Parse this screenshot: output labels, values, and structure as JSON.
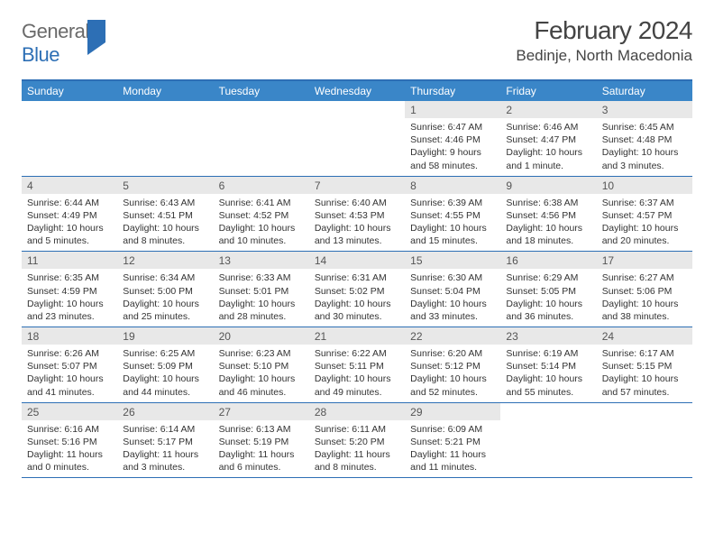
{
  "header": {
    "logo_general": "General",
    "logo_blue": "Blue",
    "title": "February 2024",
    "location": "Bedinje, North Macedonia"
  },
  "colors": {
    "header_bar": "#3a86c8",
    "rule": "#2d6fb5",
    "daynum_bg": "#e8e8e8",
    "text": "#333333",
    "title": "#444444"
  },
  "daysOfWeek": [
    "Sunday",
    "Monday",
    "Tuesday",
    "Wednesday",
    "Thursday",
    "Friday",
    "Saturday"
  ],
  "weeks": [
    [
      {
        "empty": true
      },
      {
        "empty": true
      },
      {
        "empty": true
      },
      {
        "empty": true
      },
      {
        "day": "1",
        "sunrise": "Sunrise: 6:47 AM",
        "sunset": "Sunset: 4:46 PM",
        "daylight": "Daylight: 9 hours and 58 minutes."
      },
      {
        "day": "2",
        "sunrise": "Sunrise: 6:46 AM",
        "sunset": "Sunset: 4:47 PM",
        "daylight": "Daylight: 10 hours and 1 minute."
      },
      {
        "day": "3",
        "sunrise": "Sunrise: 6:45 AM",
        "sunset": "Sunset: 4:48 PM",
        "daylight": "Daylight: 10 hours and 3 minutes."
      }
    ],
    [
      {
        "day": "4",
        "sunrise": "Sunrise: 6:44 AM",
        "sunset": "Sunset: 4:49 PM",
        "daylight": "Daylight: 10 hours and 5 minutes."
      },
      {
        "day": "5",
        "sunrise": "Sunrise: 6:43 AM",
        "sunset": "Sunset: 4:51 PM",
        "daylight": "Daylight: 10 hours and 8 minutes."
      },
      {
        "day": "6",
        "sunrise": "Sunrise: 6:41 AM",
        "sunset": "Sunset: 4:52 PM",
        "daylight": "Daylight: 10 hours and 10 minutes."
      },
      {
        "day": "7",
        "sunrise": "Sunrise: 6:40 AM",
        "sunset": "Sunset: 4:53 PM",
        "daylight": "Daylight: 10 hours and 13 minutes."
      },
      {
        "day": "8",
        "sunrise": "Sunrise: 6:39 AM",
        "sunset": "Sunset: 4:55 PM",
        "daylight": "Daylight: 10 hours and 15 minutes."
      },
      {
        "day": "9",
        "sunrise": "Sunrise: 6:38 AM",
        "sunset": "Sunset: 4:56 PM",
        "daylight": "Daylight: 10 hours and 18 minutes."
      },
      {
        "day": "10",
        "sunrise": "Sunrise: 6:37 AM",
        "sunset": "Sunset: 4:57 PM",
        "daylight": "Daylight: 10 hours and 20 minutes."
      }
    ],
    [
      {
        "day": "11",
        "sunrise": "Sunrise: 6:35 AM",
        "sunset": "Sunset: 4:59 PM",
        "daylight": "Daylight: 10 hours and 23 minutes."
      },
      {
        "day": "12",
        "sunrise": "Sunrise: 6:34 AM",
        "sunset": "Sunset: 5:00 PM",
        "daylight": "Daylight: 10 hours and 25 minutes."
      },
      {
        "day": "13",
        "sunrise": "Sunrise: 6:33 AM",
        "sunset": "Sunset: 5:01 PM",
        "daylight": "Daylight: 10 hours and 28 minutes."
      },
      {
        "day": "14",
        "sunrise": "Sunrise: 6:31 AM",
        "sunset": "Sunset: 5:02 PM",
        "daylight": "Daylight: 10 hours and 30 minutes."
      },
      {
        "day": "15",
        "sunrise": "Sunrise: 6:30 AM",
        "sunset": "Sunset: 5:04 PM",
        "daylight": "Daylight: 10 hours and 33 minutes."
      },
      {
        "day": "16",
        "sunrise": "Sunrise: 6:29 AM",
        "sunset": "Sunset: 5:05 PM",
        "daylight": "Daylight: 10 hours and 36 minutes."
      },
      {
        "day": "17",
        "sunrise": "Sunrise: 6:27 AM",
        "sunset": "Sunset: 5:06 PM",
        "daylight": "Daylight: 10 hours and 38 minutes."
      }
    ],
    [
      {
        "day": "18",
        "sunrise": "Sunrise: 6:26 AM",
        "sunset": "Sunset: 5:07 PM",
        "daylight": "Daylight: 10 hours and 41 minutes."
      },
      {
        "day": "19",
        "sunrise": "Sunrise: 6:25 AM",
        "sunset": "Sunset: 5:09 PM",
        "daylight": "Daylight: 10 hours and 44 minutes."
      },
      {
        "day": "20",
        "sunrise": "Sunrise: 6:23 AM",
        "sunset": "Sunset: 5:10 PM",
        "daylight": "Daylight: 10 hours and 46 minutes."
      },
      {
        "day": "21",
        "sunrise": "Sunrise: 6:22 AM",
        "sunset": "Sunset: 5:11 PM",
        "daylight": "Daylight: 10 hours and 49 minutes."
      },
      {
        "day": "22",
        "sunrise": "Sunrise: 6:20 AM",
        "sunset": "Sunset: 5:12 PM",
        "daylight": "Daylight: 10 hours and 52 minutes."
      },
      {
        "day": "23",
        "sunrise": "Sunrise: 6:19 AM",
        "sunset": "Sunset: 5:14 PM",
        "daylight": "Daylight: 10 hours and 55 minutes."
      },
      {
        "day": "24",
        "sunrise": "Sunrise: 6:17 AM",
        "sunset": "Sunset: 5:15 PM",
        "daylight": "Daylight: 10 hours and 57 minutes."
      }
    ],
    [
      {
        "day": "25",
        "sunrise": "Sunrise: 6:16 AM",
        "sunset": "Sunset: 5:16 PM",
        "daylight": "Daylight: 11 hours and 0 minutes."
      },
      {
        "day": "26",
        "sunrise": "Sunrise: 6:14 AM",
        "sunset": "Sunset: 5:17 PM",
        "daylight": "Daylight: 11 hours and 3 minutes."
      },
      {
        "day": "27",
        "sunrise": "Sunrise: 6:13 AM",
        "sunset": "Sunset: 5:19 PM",
        "daylight": "Daylight: 11 hours and 6 minutes."
      },
      {
        "day": "28",
        "sunrise": "Sunrise: 6:11 AM",
        "sunset": "Sunset: 5:20 PM",
        "daylight": "Daylight: 11 hours and 8 minutes."
      },
      {
        "day": "29",
        "sunrise": "Sunrise: 6:09 AM",
        "sunset": "Sunset: 5:21 PM",
        "daylight": "Daylight: 11 hours and 11 minutes."
      },
      {
        "empty": true
      },
      {
        "empty": true
      }
    ]
  ]
}
